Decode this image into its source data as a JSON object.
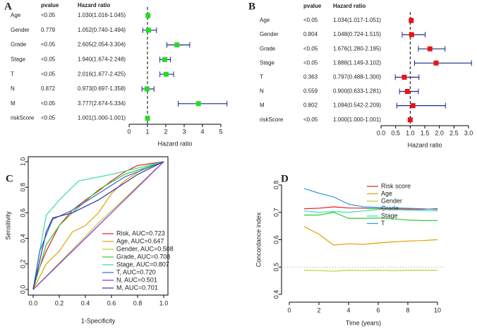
{
  "chart_data": [
    {
      "type": "forest",
      "panel_label": "A",
      "columns": [
        "pvalue",
        "Hazard ratio"
      ],
      "categories": [
        "Age",
        "Gender",
        "Grade",
        "Stage",
        "T",
        "N",
        "M",
        "riskScore"
      ],
      "pvalues": [
        "<0.05",
        "0.779",
        "<0.05",
        "<0.05",
        "<0.05",
        "0.872",
        "<0.05",
        "<0.05"
      ],
      "values": [
        1.03,
        1.052,
        2.605,
        1.94,
        2.016,
        0.973,
        3.777,
        1.001
      ],
      "lower": [
        1.016,
        0.74,
        2.054,
        1.674,
        1.677,
        0.697,
        2.674,
        1.0
      ],
      "upper": [
        1.045,
        1.494,
        3.304,
        2.248,
        2.425,
        1.358,
        5.334,
        1.001
      ],
      "value_labels": [
        "1.030(1.016-1.045)",
        "1.052(0.740-1.494)",
        "2.605(2.054-3.304)",
        "1.940(1.674-2.248)",
        "2.016(1.677-2.425)",
        "0.973(0.697-1.358)",
        "3.777(2.674-5.334)",
        "1.001(1.000-1.001)"
      ],
      "xlabel": "Hazard ratio",
      "xlim": [
        0,
        5
      ],
      "xticks": [
        0,
        1,
        2,
        3,
        4,
        5
      ],
      "ref_line": 1,
      "color": "#22dd22",
      "ci_color": "#1a2a8a"
    },
    {
      "type": "forest",
      "panel_label": "B",
      "columns": [
        "pvalue",
        "Hazard ratio"
      ],
      "categories": [
        "Age",
        "Gender",
        "Grade",
        "Stage",
        "T",
        "N",
        "M",
        "riskScore"
      ],
      "pvalues": [
        "<0.05",
        "0.804",
        "<0.05",
        "<0.05",
        "0.363",
        "0.559",
        "0.802",
        "<0.05"
      ],
      "values": [
        1.034,
        1.048,
        1.676,
        1.888,
        0.797,
        0.9,
        1.094,
        1.0
      ],
      "lower": [
        1.017,
        0.724,
        1.28,
        1.149,
        0.488,
        0.633,
        0.542,
        1.0
      ],
      "upper": [
        1.051,
        1.515,
        2.195,
        3.102,
        1.3,
        1.281,
        2.209,
        1.001
      ],
      "value_labels": [
        "1.034(1.017-1.051)",
        "1.048(0.724-1.515)",
        "1.676(1.280-2.195)",
        "1.888(1.149-3.102)",
        "0.797(0.488-1.300)",
        "0.900(0.633-1.281)",
        "1.094(0.542-2.209)",
        "1.000(1.000-1.001)"
      ],
      "xlabel": "Hazard ratio",
      "xlim": [
        0,
        3
      ],
      "xticks": [
        {
          "value": 0,
          "label": "0.0"
        },
        0.5,
        {
          "value": 1,
          "label": "1.0"
        },
        1.5,
        {
          "value": 2,
          "label": "2.0"
        },
        2.5,
        {
          "value": 3,
          "label": "3.0"
        }
      ],
      "ref_line": 1,
      "color": "#ee1111",
      "ci_color": "#1a2a8a"
    },
    {
      "type": "line",
      "panel_label": "C",
      "xlabel": "1-Specificity",
      "ylabel": "Sensitivity",
      "diagonal": true,
      "box": true,
      "xlim": [
        0,
        1
      ],
      "ylim": [
        0,
        1
      ],
      "xticks": [
        {
          "value": 0,
          "label": "0.0"
        },
        0.2,
        0.4,
        0.6,
        0.8,
        {
          "value": 1,
          "label": "1.0"
        }
      ],
      "yticks": [
        {
          "value": 0,
          "label": "0.0"
        },
        0.2,
        0.4,
        0.6,
        0.8,
        {
          "value": 1,
          "label": "1.0"
        }
      ],
      "series": [
        {
          "name": "Risk, AUC=0.723",
          "color": "#e41a1c",
          "x": [
            0,
            0.02,
            0.1,
            0.2,
            0.3,
            0.4,
            0.5,
            0.6,
            0.7,
            0.8,
            1
          ],
          "values": [
            0,
            0.1,
            0.3,
            0.5,
            0.62,
            0.7,
            0.77,
            0.85,
            0.92,
            0.97,
            1
          ]
        },
        {
          "name": "Age, AUC=0.647",
          "color": "#e69f00",
          "x": [
            0,
            0.1,
            0.2,
            0.3,
            0.4,
            0.5,
            0.6,
            0.7,
            0.85,
            1
          ],
          "values": [
            0,
            0.2,
            0.3,
            0.45,
            0.5,
            0.6,
            0.75,
            0.85,
            0.95,
            1
          ]
        },
        {
          "name": "Gender, AUC=0.508",
          "color": "#b5d334",
          "x": [
            0,
            0.5,
            1
          ],
          "values": [
            0,
            0.52,
            1
          ]
        },
        {
          "name": "Grade, AUC=0.708",
          "color": "#33cc33",
          "x": [
            0,
            0.1,
            0.2,
            0.3,
            0.5,
            0.7,
            1
          ],
          "values": [
            0,
            0.35,
            0.5,
            0.6,
            0.78,
            0.9,
            1
          ]
        },
        {
          "name": "Stage, AUC=0.807",
          "color": "#33e0a0",
          "x": [
            0,
            0.05,
            0.1,
            0.2,
            0.35,
            0.6,
            0.8,
            1
          ],
          "values": [
            0,
            0.3,
            0.58,
            0.7,
            0.85,
            0.9,
            0.95,
            1
          ]
        },
        {
          "name": "T, AUC=0.720",
          "color": "#3366cc",
          "x": [
            0,
            0.05,
            0.15,
            0.3,
            0.5,
            0.7,
            1
          ],
          "values": [
            0,
            0.3,
            0.55,
            0.62,
            0.75,
            0.88,
            1
          ]
        },
        {
          "name": "N, AUC=0.501",
          "color": "#8a2be2",
          "x": [
            0,
            0.5,
            1
          ],
          "values": [
            0,
            0.5,
            1
          ]
        },
        {
          "name": "M, AUC=0.701",
          "color": "#3333aa",
          "x": [
            0,
            0.1,
            0.15,
            0.3,
            0.5,
            0.8,
            1
          ],
          "values": [
            0,
            0.45,
            0.56,
            0.6,
            0.7,
            0.9,
            1
          ]
        }
      ]
    },
    {
      "type": "line",
      "panel_label": "D",
      "xlabel": "Time (years)",
      "ylabel": "Concordance index",
      "ref_line": 0.5,
      "xlim": [
        0,
        10
      ],
      "ylim": [
        0.4,
        0.8
      ],
      "xticks": [
        0,
        2,
        4,
        6,
        8,
        10
      ],
      "yticks": [
        0.4,
        0.5,
        0.6,
        0.7,
        0.8
      ],
      "x": [
        1,
        2,
        3,
        4,
        5,
        6,
        7,
        8,
        9,
        10
      ],
      "series": [
        {
          "name": "Risk score",
          "color": "#e41a1c",
          "values": [
            0.713,
            0.715,
            0.72,
            0.716,
            0.715,
            0.714,
            0.713,
            0.712,
            0.711,
            0.713
          ]
        },
        {
          "name": "Age",
          "color": "#e69f00",
          "values": [
            0.648,
            0.62,
            0.58,
            0.585,
            0.583,
            0.588,
            0.592,
            0.595,
            0.597,
            0.6
          ]
        },
        {
          "name": "Gender",
          "color": "#b5d334",
          "values": [
            0.488,
            0.487,
            0.485,
            0.488,
            0.487,
            0.488,
            0.487,
            0.488,
            0.488,
            0.488
          ]
        },
        {
          "name": "Grade",
          "color": "#33cc33",
          "values": [
            0.69,
            0.69,
            0.7,
            0.678,
            0.678,
            0.679,
            0.676,
            0.672,
            0.67,
            0.67
          ]
        },
        {
          "name": "Stage",
          "color": "#33e0c0",
          "values": [
            0.705,
            0.7,
            0.703,
            0.7,
            0.705,
            0.71,
            0.71,
            0.708,
            0.706,
            0.705
          ]
        },
        {
          "name": "T",
          "color": "#3399dd",
          "values": [
            0.787,
            0.77,
            0.756,
            0.73,
            0.72,
            0.718,
            0.717,
            0.715,
            0.713,
            0.71
          ]
        }
      ]
    }
  ]
}
